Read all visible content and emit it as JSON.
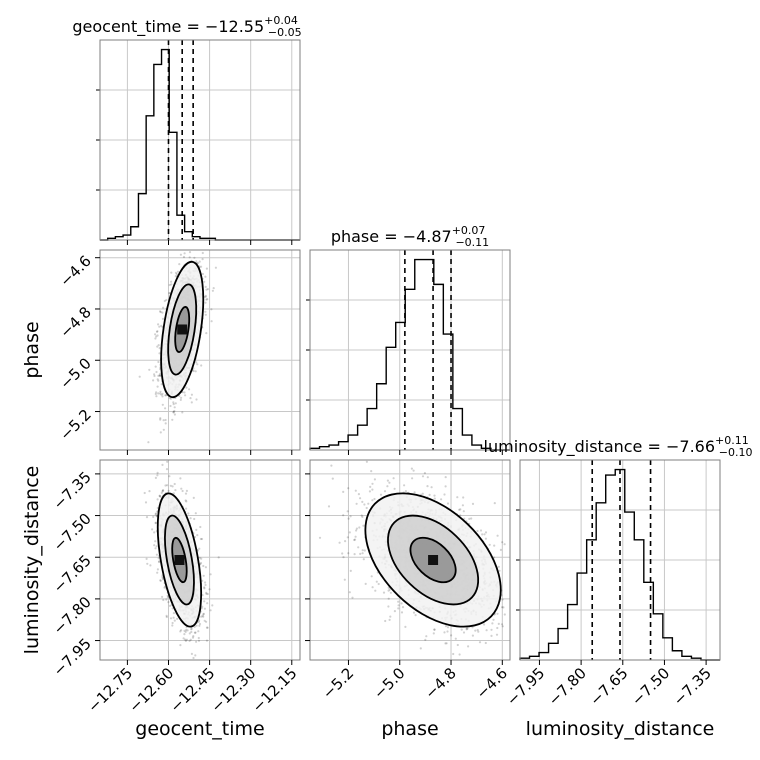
{
  "chart_data": {
    "type": "corner",
    "parameters": [
      "geocent_time",
      "phase",
      "luminosity_distance"
    ],
    "axis_labels": {
      "x": [
        "geocent_time",
        "phase",
        "luminosity_distance"
      ],
      "y": [
        "phase",
        "luminosity_distance"
      ]
    },
    "titles": [
      {
        "param": "geocent_time",
        "prefix": "geocent_time = ",
        "median": "−12.55",
        "plus": "+0.04",
        "minus": "−0.05"
      },
      {
        "param": "phase",
        "prefix": "phase = ",
        "median": "−4.87",
        "plus": "+0.07",
        "minus": "−0.11"
      },
      {
        "param": "luminosity_distance",
        "prefix": "luminosity_distance = ",
        "median": "−7.66",
        "plus": "+0.11",
        "minus": "−0.10"
      }
    ],
    "ranges": {
      "geocent_time": [
        -12.85,
        -12.12
      ],
      "phase": [
        -5.35,
        -4.57
      ],
      "luminosity_distance": [
        -8.02,
        -7.3
      ]
    },
    "ticks": {
      "geocent_time": {
        "values": [
          -12.75,
          -12.6,
          -12.45,
          -12.3,
          -12.15
        ],
        "labels": [
          "−12.75",
          "−12.60",
          "−12.45",
          "−12.30",
          "−12.15"
        ]
      },
      "phase": {
        "values": [
          -5.2,
          -5.0,
          -4.8,
          -4.6
        ],
        "labels": [
          "−5.2",
          "−5.0",
          "−4.8",
          "−4.6"
        ]
      },
      "luminosity_distance": {
        "values": [
          -7.95,
          -7.8,
          -7.65,
          -7.5,
          -7.35
        ],
        "labels": [
          "−7.95",
          "−7.80",
          "−7.65",
          "−7.50",
          "−7.35"
        ]
      }
    },
    "quantiles": {
      "geocent_time": [
        -12.6,
        -12.55,
        -12.51
      ],
      "phase": [
        -4.98,
        -4.87,
        -4.8
      ],
      "luminosity_distance": [
        -7.76,
        -7.66,
        -7.55
      ]
    },
    "histograms": {
      "geocent_time": {
        "x_start": -12.85,
        "x_end": -12.12,
        "counts": [
          0,
          1,
          2,
          3,
          8,
          28,
          75,
          106,
          115,
          65,
          15,
          5,
          2,
          1,
          1,
          0,
          0,
          0,
          0,
          0,
          0,
          0,
          0,
          0,
          0,
          0
        ]
      },
      "phase": {
        "x_start": -5.35,
        "x_end": -4.57,
        "counts": [
          1,
          2,
          3,
          5,
          9,
          15,
          25,
          40,
          62,
          77,
          97,
          115,
          115,
          100,
          70,
          25,
          9,
          3,
          1,
          0,
          0
        ]
      },
      "luminosity_distance": {
        "x_start": -8.02,
        "x_end": -7.3,
        "counts": [
          1,
          2,
          4,
          9,
          17,
          30,
          47,
          65,
          85,
          100,
          103,
          80,
          65,
          42,
          25,
          12,
          5,
          2,
          1,
          0,
          0
        ]
      }
    },
    "joint": [
      {
        "x": "geocent_time",
        "y": "phase",
        "center": [
          -12.55,
          -4.88
        ],
        "sd": [
          0.032,
          0.11
        ],
        "rho": 0.45
      },
      {
        "x": "geocent_time",
        "y": "luminosity_distance",
        "center": [
          -12.56,
          -7.66
        ],
        "sd": [
          0.033,
          0.1
        ],
        "rho": -0.5
      },
      {
        "x": "phase",
        "y": "luminosity_distance",
        "center": [
          -4.87,
          -7.66
        ],
        "sd": [
          0.11,
          0.1
        ],
        "rho": -0.45
      }
    ],
    "grid": true,
    "contour_levels": 3
  }
}
